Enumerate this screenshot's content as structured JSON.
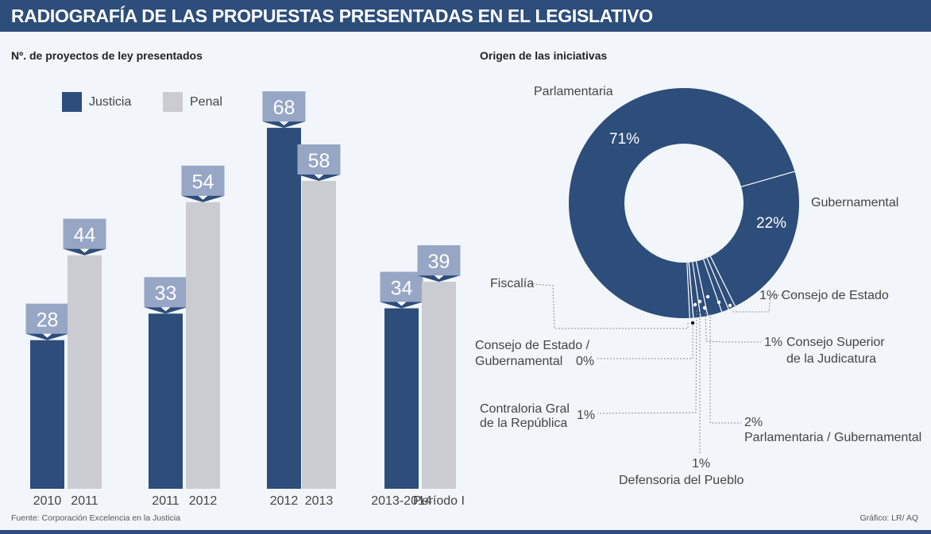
{
  "header": {
    "title": "RADIOGRAFÍA DE LAS PROPUESTAS PRESENTADAS EN EL LEGISLATIVO"
  },
  "colors": {
    "justicia": "#2d4d7a",
    "penal": "#cbccd1",
    "label_box": "#97a6c5",
    "donut": "#2d4d7a",
    "background": "#f2f6fa"
  },
  "chart_data": [
    {
      "type": "bar",
      "title": "Nº. de proyectos de ley presentados",
      "legend": [
        {
          "name": "Justicia",
          "color": "#2d4d7a"
        },
        {
          "name": "Penal",
          "color": "#cbccd1"
        }
      ],
      "legend_position": "top-left",
      "grid": false,
      "ylim": [
        0,
        70
      ],
      "groups": [
        {
          "bars": [
            {
              "series": "Justicia",
              "label": "2010",
              "value": 28
            },
            {
              "series": "Penal",
              "label": "2011",
              "value": 44
            }
          ]
        },
        {
          "bars": [
            {
              "series": "Justicia",
              "label": "2011",
              "value": 33
            },
            {
              "series": "Penal",
              "label": "2012",
              "value": 54
            }
          ]
        },
        {
          "bars": [
            {
              "series": "Justicia",
              "label": "2012",
              "value": 68
            },
            {
              "series": "Penal",
              "label": "2013",
              "value": 58
            }
          ]
        },
        {
          "bars": [
            {
              "series": "Justicia",
              "label": "2013-2014",
              "value": 34
            },
            {
              "series": "Penal",
              "label": "Período I",
              "value": 39
            }
          ]
        }
      ]
    },
    {
      "type": "pie",
      "title": "Origen de las iniciativas",
      "donut": true,
      "slices": [
        {
          "name": "Parlamentaria",
          "value": 71,
          "pct_label": "71%"
        },
        {
          "name": "Gubernamental",
          "value": 22,
          "pct_label": "22%"
        },
        {
          "name": "Consejo de Estado",
          "value": 1,
          "pct_label": "1%"
        },
        {
          "name": "Consejo Superior de la Judicatura",
          "value": 1,
          "pct_label": "1%"
        },
        {
          "name": "Parlamentaria / Gubernamental",
          "value": 2,
          "pct_label": "2%"
        },
        {
          "name": "Defensoria del Pueblo",
          "value": 1,
          "pct_label": "1%"
        },
        {
          "name": "Contraloria Gral de la República",
          "value": 1,
          "pct_label": "1%"
        },
        {
          "name": "Consejo de Estado / Gubernamental",
          "value": 0,
          "pct_label": "0%"
        },
        {
          "name": "Fiscalía",
          "value": 0.5,
          "pct_label": ""
        }
      ]
    }
  ],
  "labels": {
    "parlamentaria": "Parlamentaria",
    "gubernamental": "Gubernamental",
    "pct71": "71%",
    "pct22": "22%",
    "fiscalia": "Fiscalía",
    "consejo_estado": "1% Consejo de Estado",
    "cons_sup_pct": "1%",
    "cons_sup_1": "Consejo Superior",
    "cons_sup_2": "de la Judicatura",
    "ce_gub_1": "Consejo de Estado /",
    "ce_gub_2": "Gubernamental",
    "ce_gub_pct": "0%",
    "contraloria_1": "Contraloria Gral",
    "contraloria_2": "de la República",
    "contraloria_pct": "1%",
    "parl_gub_pct": "2%",
    "parl_gub": "Parlamentaria / Gubernamental",
    "defensoria_pct": "1%",
    "defensoria": "Defensoria del Pueblo"
  },
  "footer": {
    "source": "Fuente: Corporación Excelencia en la Justicia",
    "credit": "Gráfico: LR/ AQ"
  }
}
